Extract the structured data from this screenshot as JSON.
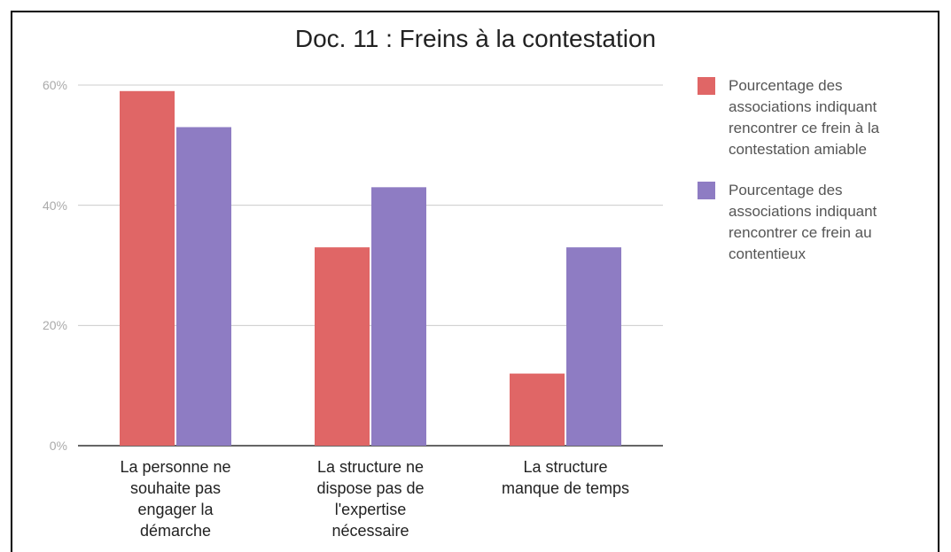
{
  "chart_data": {
    "type": "bar",
    "title": "Doc. 11 : Freins à la contestation",
    "categories": [
      "La personne ne souhaite pas engager la démarche",
      "La structure ne dispose pas de l'expertise nécessaire",
      "La structure manque de temps"
    ],
    "series": [
      {
        "name": "Pourcentage des associations indiquant rencontrer ce frein à la contestation amiable",
        "color": "#e06666",
        "values": [
          59,
          33,
          12
        ]
      },
      {
        "name": "Pourcentage des associations indiquant rencontrer ce frein au contentieux",
        "color": "#8e7cc3",
        "values": [
          53,
          43,
          33
        ]
      }
    ],
    "ylim": [
      0,
      60
    ],
    "yticks": [
      {
        "value": 0,
        "label": "0%"
      },
      {
        "value": 20,
        "label": "20%"
      },
      {
        "value": 40,
        "label": "40%"
      },
      {
        "value": 60,
        "label": "60%"
      }
    ],
    "grid": true,
    "legend": "right"
  }
}
